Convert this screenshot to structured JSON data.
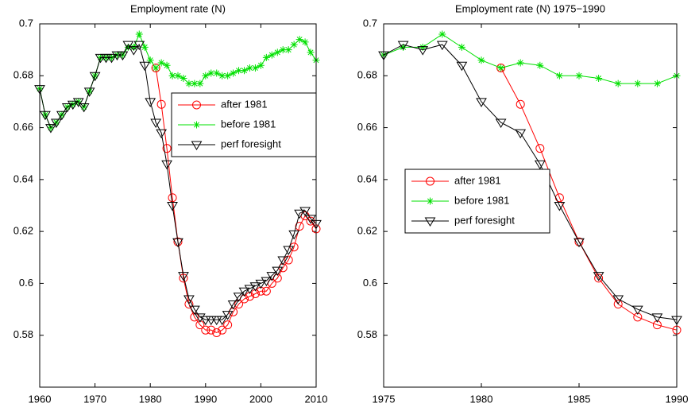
{
  "chart_data": [
    {
      "type": "line",
      "title": "Employment rate (N)",
      "x": [
        1960,
        1961,
        1962,
        1963,
        1964,
        1965,
        1966,
        1967,
        1968,
        1969,
        1970,
        1971,
        1972,
        1973,
        1974,
        1975,
        1976,
        1977,
        1978,
        1979,
        1980,
        1981,
        1982,
        1983,
        1984,
        1985,
        1986,
        1987,
        1988,
        1989,
        1990,
        1991,
        1992,
        1993,
        1994,
        1995,
        1996,
        1997,
        1998,
        1999,
        2000,
        2001,
        2002,
        2003,
        2004,
        2005,
        2006,
        2007,
        2008,
        2009,
        2010
      ],
      "series": [
        {
          "name": "after 1981",
          "color": "#ff0000",
          "marker": "o",
          "values": [
            null,
            null,
            null,
            null,
            null,
            null,
            null,
            null,
            null,
            null,
            null,
            null,
            null,
            null,
            null,
            null,
            null,
            null,
            null,
            null,
            null,
            0.683,
            0.669,
            0.652,
            0.633,
            0.616,
            0.602,
            0.592,
            0.587,
            0.584,
            0.582,
            0.582,
            0.581,
            0.582,
            0.584,
            0.589,
            0.592,
            0.594,
            0.595,
            0.596,
            0.597,
            0.597,
            0.6,
            0.602,
            0.606,
            0.609,
            0.614,
            0.622,
            0.626,
            0.624,
            0.621
          ]
        },
        {
          "name": "before 1981",
          "color": "#00e000",
          "marker": "*",
          "values": [
            0.675,
            0.665,
            0.66,
            0.662,
            0.665,
            0.668,
            0.669,
            0.67,
            0.668,
            0.674,
            0.68,
            0.687,
            0.687,
            0.687,
            0.688,
            0.688,
            0.691,
            0.691,
            0.696,
            0.691,
            0.686,
            0.683,
            0.685,
            0.684,
            0.68,
            0.68,
            0.679,
            0.677,
            0.677,
            0.677,
            0.68,
            0.681,
            0.681,
            0.68,
            0.68,
            0.681,
            0.682,
            0.682,
            0.683,
            0.683,
            0.684,
            0.687,
            0.688,
            0.689,
            0.69,
            0.69,
            0.692,
            0.694,
            0.693,
            0.689,
            0.686
          ]
        },
        {
          "name": "perf foresight",
          "color": "#000000",
          "marker": "v",
          "values": [
            0.675,
            0.665,
            0.66,
            0.662,
            0.665,
            0.668,
            0.669,
            0.67,
            0.668,
            0.674,
            0.68,
            0.687,
            0.687,
            0.687,
            0.688,
            0.688,
            0.692,
            0.69,
            0.692,
            0.684,
            0.67,
            0.662,
            0.658,
            0.646,
            0.63,
            0.616,
            0.603,
            0.594,
            0.59,
            0.587,
            0.586,
            0.586,
            0.586,
            0.586,
            0.588,
            0.592,
            0.595,
            0.597,
            0.598,
            0.599,
            0.6,
            0.601,
            0.603,
            0.605,
            0.609,
            0.613,
            0.619,
            0.627,
            0.628,
            0.625,
            0.623
          ]
        }
      ],
      "xlim": [
        1960,
        2010
      ],
      "xticks": [
        1960,
        1970,
        1980,
        1990,
        2000,
        2010
      ],
      "ylim": [
        0.56,
        0.7
      ],
      "yticks": [
        0.58,
        0.6,
        0.62,
        0.64,
        0.66,
        0.68,
        0.7
      ],
      "legend": "east"
    },
    {
      "type": "line",
      "title": "Employment rate (N) 1975−1990",
      "x": [
        1975,
        1976,
        1977,
        1978,
        1979,
        1980,
        1981,
        1982,
        1983,
        1984,
        1985,
        1986,
        1987,
        1988,
        1989,
        1990
      ],
      "series": [
        {
          "name": "after 1981",
          "color": "#ff0000",
          "marker": "o",
          "values": [
            null,
            null,
            null,
            null,
            null,
            null,
            0.683,
            0.669,
            0.652,
            0.633,
            0.616,
            0.602,
            0.592,
            0.587,
            0.584,
            0.582
          ]
        },
        {
          "name": "before 1981",
          "color": "#00e000",
          "marker": "*",
          "values": [
            0.688,
            0.691,
            0.691,
            0.696,
            0.691,
            0.686,
            0.683,
            0.685,
            0.684,
            0.68,
            0.68,
            0.679,
            0.677,
            0.677,
            0.677,
            0.68
          ]
        },
        {
          "name": "perf foresight",
          "color": "#000000",
          "marker": "v",
          "values": [
            0.688,
            0.692,
            0.69,
            0.692,
            0.684,
            0.67,
            0.662,
            0.658,
            0.646,
            0.63,
            0.616,
            0.603,
            0.594,
            0.59,
            0.587,
            0.586
          ]
        }
      ],
      "xlim": [
        1975,
        1990
      ],
      "xticks": [
        1975,
        1980,
        1985,
        1990
      ],
      "ylim": [
        0.56,
        0.7
      ],
      "yticks": [
        0.58,
        0.6,
        0.62,
        0.64,
        0.66,
        0.68,
        0.7
      ],
      "legend": "west"
    }
  ]
}
